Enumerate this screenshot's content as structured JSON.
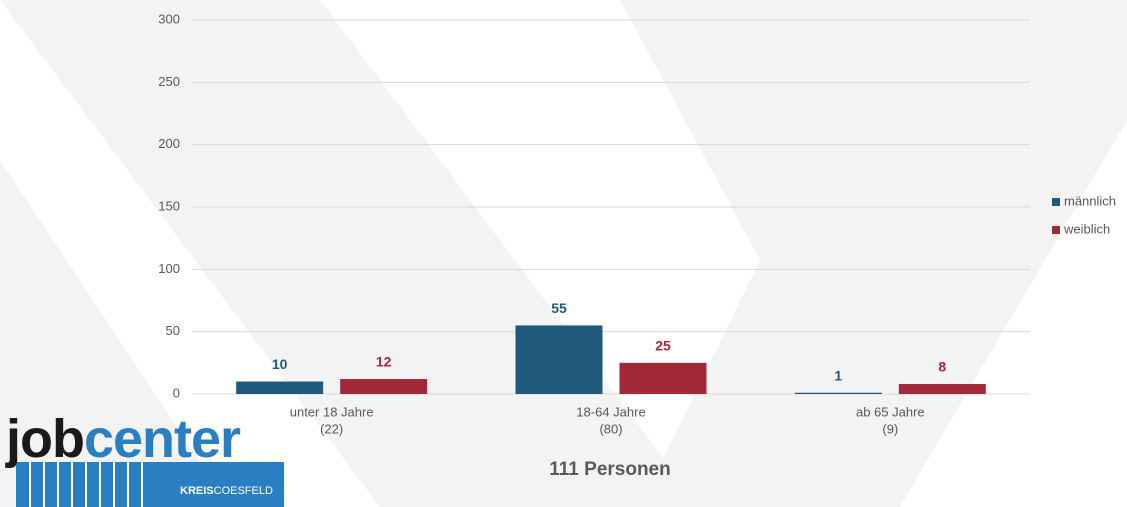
{
  "chart_data": {
    "type": "bar",
    "categories": [
      "unter 18 Jahre",
      "18-64 Jahre",
      "ab 65 Jahre"
    ],
    "category_sublabels": [
      "(22)",
      "(80)",
      "(9)"
    ],
    "series": [
      {
        "name": "männlich",
        "color": "#1f5a7d",
        "values": [
          10,
          55,
          1
        ]
      },
      {
        "name": "weiblich",
        "color": "#a3293a",
        "values": [
          12,
          25,
          8
        ]
      }
    ],
    "ylim": [
      0,
      300
    ],
    "yticks": [
      0,
      50,
      100,
      150,
      200,
      250,
      300
    ],
    "grid": true,
    "legend": "right",
    "footer": "111 Personen"
  },
  "logo": {
    "part1": "job",
    "part2": "center",
    "sub1": "KREIS",
    "sub2": "COESFELD"
  }
}
